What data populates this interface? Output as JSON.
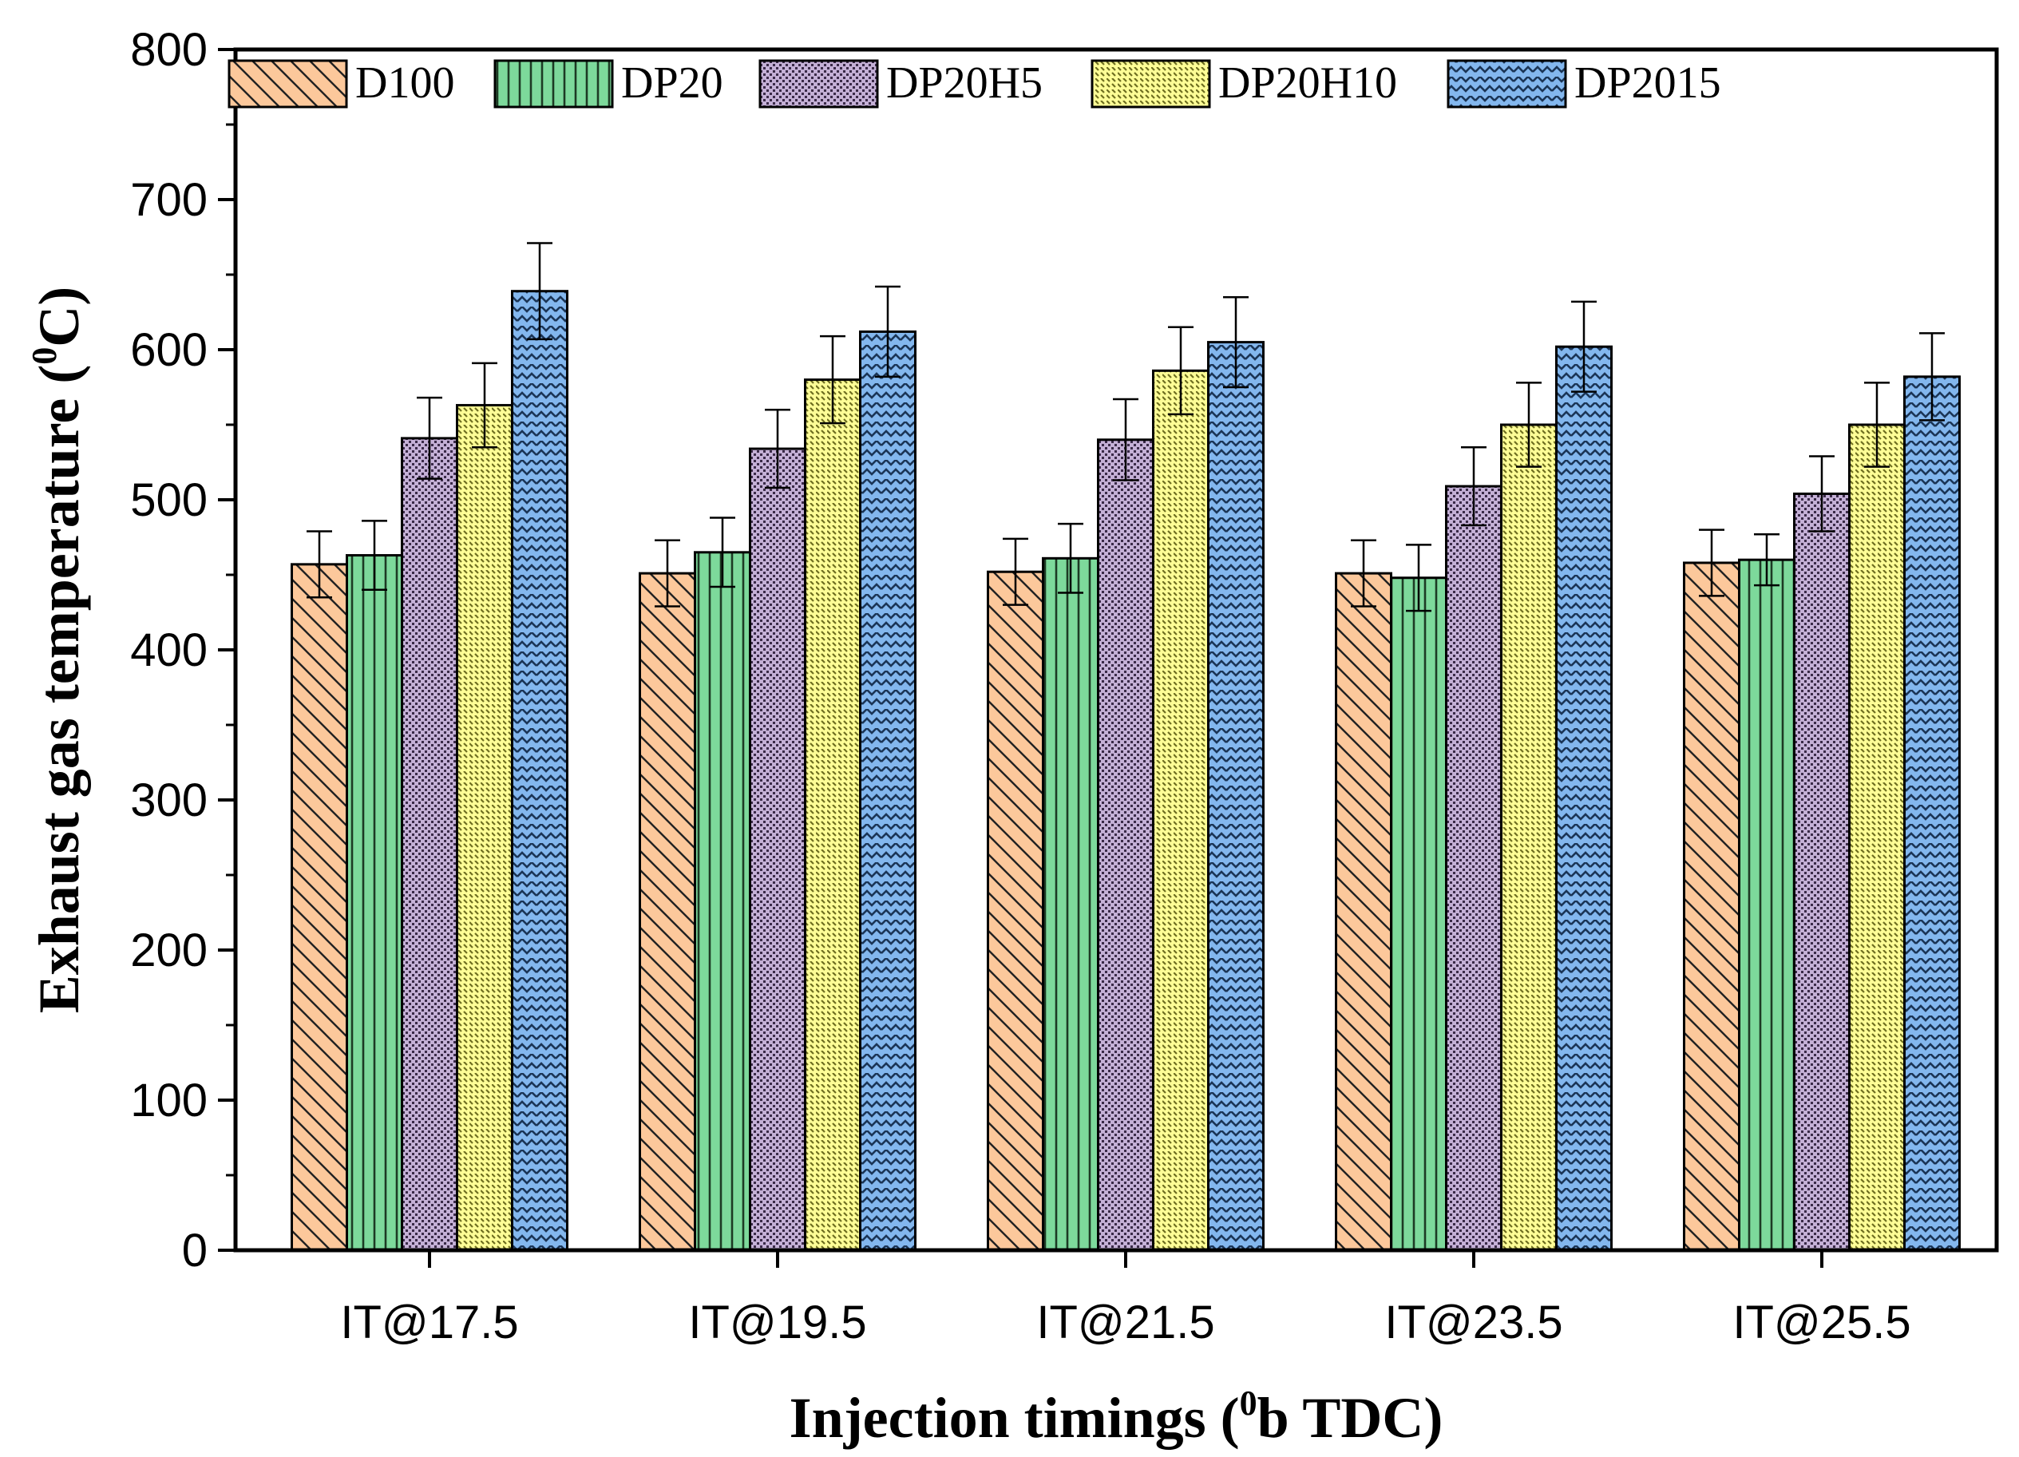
{
  "chart_data": {
    "type": "bar",
    "xlabel": "Injection timings (",
    "xlabel_sup": "0",
    "xlabel_tail": "b TDC)",
    "ylabel": "Exhaust gas temperature (",
    "ylabel_sup": "0",
    "ylabel_tail": "C)",
    "ylim": [
      0,
      800
    ],
    "yticks": [
      "0",
      "100",
      "200",
      "300",
      "400",
      "500",
      "600",
      "700",
      "800"
    ],
    "categories": [
      "IT@17.5",
      "IT@19.5",
      "IT@21.5",
      "IT@23.5",
      "IT@25.5"
    ],
    "legend_position": "top",
    "grid": false,
    "series": [
      {
        "name": "D100",
        "color": "#fcc89b",
        "pattern": "diagonal-hatch",
        "values": [
          457,
          451,
          452,
          451,
          458
        ],
        "errors": [
          22,
          22,
          22,
          22,
          22
        ]
      },
      {
        "name": "DP20",
        "color": "#7dd99b",
        "pattern": "vertical-lines",
        "values": [
          463,
          465,
          461,
          448,
          460
        ],
        "errors": [
          23,
          23,
          23,
          22,
          17
        ]
      },
      {
        "name": "DP20H5",
        "color": "#c4b0d6",
        "pattern": "dense-dots",
        "values": [
          541,
          534,
          540,
          509,
          504
        ],
        "errors": [
          27,
          26,
          27,
          26,
          25
        ]
      },
      {
        "name": "DP20H10",
        "color": "#fdfd96",
        "pattern": "dashed-diagonal",
        "values": [
          563,
          580,
          586,
          550,
          550
        ],
        "errors": [
          28,
          29,
          29,
          28,
          28
        ]
      },
      {
        "name": "DP2015",
        "color": "#83b7ee",
        "pattern": "zigzag",
        "values": [
          639,
          612,
          605,
          602,
          582
        ],
        "errors": [
          32,
          30,
          30,
          30,
          29
        ]
      }
    ]
  }
}
